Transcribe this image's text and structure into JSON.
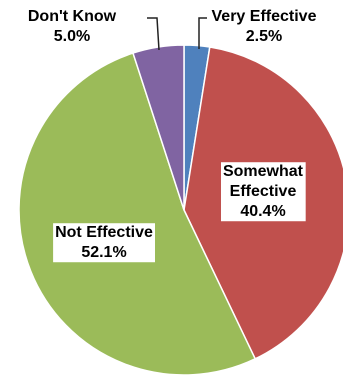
{
  "chart_data": {
    "type": "pie",
    "title": "",
    "start_angle_deg": 0,
    "direction": "clockwise",
    "slices": [
      {
        "label_lines": [
          "Very Effective",
          "2.5%"
        ],
        "value": 2.5,
        "color": "#4f81bd"
      },
      {
        "label_lines": [
          "Somewhat",
          "Effective",
          "40.4%"
        ],
        "value": 40.4,
        "color": "#c0504d"
      },
      {
        "label_lines": [
          "Not Effective",
          "52.1%"
        ],
        "value": 52.1,
        "color": "#9bbb59"
      },
      {
        "label_lines": [
          "Don't Know",
          "5.0%"
        ],
        "value": 5.0,
        "color": "#8064a2"
      }
    ]
  }
}
